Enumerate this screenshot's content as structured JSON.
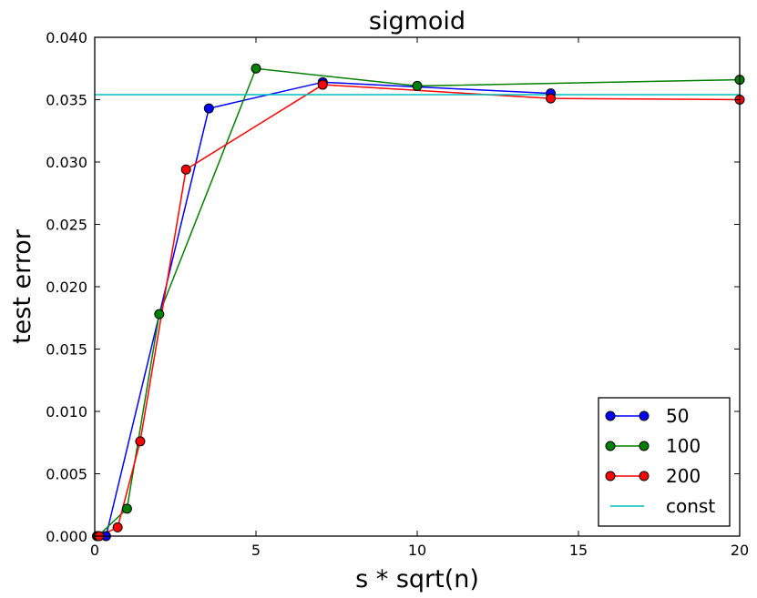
{
  "chart_data": {
    "type": "line",
    "title": "sigmoid",
    "xlabel": "s * sqrt(n)",
    "ylabel": "test error",
    "xlim": [
      0,
      20
    ],
    "ylim": [
      0,
      0.04
    ],
    "x_ticks": [
      0,
      5,
      10,
      15,
      20
    ],
    "x_tick_labels": [
      "0",
      "5",
      "10",
      "15",
      "20"
    ],
    "y_ticks": [
      0,
      0.005,
      0.01,
      0.015,
      0.02,
      0.025,
      0.03,
      0.035,
      0.04
    ],
    "y_tick_labels": [
      "0.000",
      "0.005",
      "0.010",
      "0.015",
      "0.020",
      "0.025",
      "0.030",
      "0.035",
      "0.040"
    ],
    "grid": false,
    "legend_position": "bottom-right",
    "series": [
      {
        "name": "50",
        "color": "#0000ff",
        "marker": "circle",
        "points": [
          {
            "x": 0.07,
            "y": 0.0
          },
          {
            "x": 0.35,
            "y": 0.0
          },
          {
            "x": 3.54,
            "y": 0.0343
          },
          {
            "x": 7.07,
            "y": 0.0364
          },
          {
            "x": 14.14,
            "y": 0.0355
          }
        ]
      },
      {
        "name": "100",
        "color": "#008000",
        "marker": "circle",
        "points": [
          {
            "x": 0.1,
            "y": 0.0
          },
          {
            "x": 1.0,
            "y": 0.0022
          },
          {
            "x": 2.0,
            "y": 0.0178
          },
          {
            "x": 5.0,
            "y": 0.0375
          },
          {
            "x": 10.0,
            "y": 0.0361
          },
          {
            "x": 20.0,
            "y": 0.0366
          }
        ]
      },
      {
        "name": "200",
        "color": "#ff0000",
        "marker": "circle",
        "points": [
          {
            "x": 0.14,
            "y": 0.0
          },
          {
            "x": 0.71,
            "y": 0.0007
          },
          {
            "x": 1.41,
            "y": 0.0076
          },
          {
            "x": 2.83,
            "y": 0.0294
          },
          {
            "x": 7.07,
            "y": 0.0362
          },
          {
            "x": 14.14,
            "y": 0.0351
          },
          {
            "x": 20.0,
            "y": 0.035
          }
        ]
      },
      {
        "name": "const",
        "color": "#00bfbf",
        "marker": "none",
        "points": [
          {
            "x": 0,
            "y": 0.0354
          },
          {
            "x": 20,
            "y": 0.0354
          }
        ]
      }
    ]
  }
}
